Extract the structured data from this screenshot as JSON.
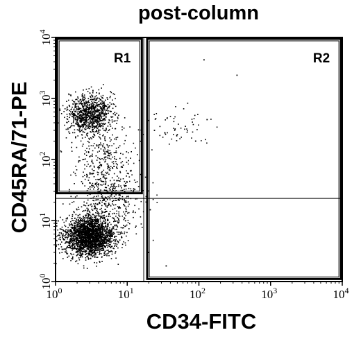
{
  "chart_data": {
    "type": "scatter",
    "title": "post-column",
    "xlabel": "CD34-FITC",
    "ylabel": "CD45RA/71-PE",
    "x_scale": "log",
    "y_scale": "log",
    "xlim": [
      1,
      10000
    ],
    "ylim": [
      1,
      10000
    ],
    "x_ticks": [
      {
        "base": "10",
        "exp": "0"
      },
      {
        "base": "10",
        "exp": "1"
      },
      {
        "base": "10",
        "exp": "2"
      },
      {
        "base": "10",
        "exp": "3"
      },
      {
        "base": "10",
        "exp": "4"
      }
    ],
    "y_ticks": [
      {
        "base": "10",
        "exp": "0"
      },
      {
        "base": "10",
        "exp": "1"
      },
      {
        "base": "10",
        "exp": "2"
      },
      {
        "base": "10",
        "exp": "3"
      },
      {
        "base": "10",
        "exp": "4"
      }
    ],
    "grid": false,
    "gates": [
      {
        "name": "R1",
        "x_range": [
          1.05,
          16
        ],
        "y_range": [
          28,
          9500
        ]
      },
      {
        "name": "R2",
        "x_range": [
          19,
          9600
        ],
        "y_range": [
          1.1,
          9500
        ]
      }
    ],
    "quadrant_lines": {
      "x": 17,
      "y": 23
    },
    "point_color": "#000000",
    "clusters": [
      {
        "center_x": 3.0,
        "center_y": 5.5,
        "spread_x_decades": 0.17,
        "spread_y_decades": 0.16,
        "count": 2400
      },
      {
        "center_x": 3.0,
        "center_y": 560,
        "spread_x_decades": 0.15,
        "spread_y_decades": 0.16,
        "count": 950
      },
      {
        "center_x": 5.0,
        "center_y": 60,
        "spread_x_decades": 0.22,
        "spread_y_decades": 0.42,
        "count": 520
      },
      {
        "center_x": 55,
        "center_y": 320,
        "spread_x_decades": 0.25,
        "spread_y_decades": 0.14,
        "count": 60
      },
      {
        "center_x": 6.0,
        "center_y": 20,
        "spread_x_decades": 0.25,
        "spread_y_decades": 0.3,
        "count": 220
      }
    ],
    "outliers": [
      {
        "x": 118,
        "y": 4300
      },
      {
        "x": 340,
        "y": 2400
      },
      {
        "x": 130,
        "y": 450
      },
      {
        "x": 90,
        "y": 200
      },
      {
        "x": 24,
        "y": 300
      },
      {
        "x": 21,
        "y": 15
      },
      {
        "x": 20,
        "y": 3
      },
      {
        "x": 35,
        "y": 1.8
      }
    ]
  }
}
